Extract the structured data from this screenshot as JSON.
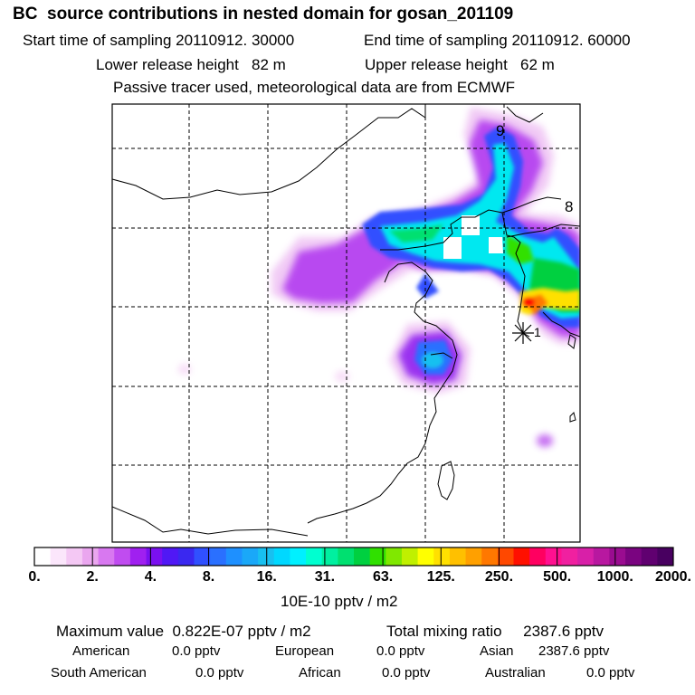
{
  "title": "BC  source contributions in nested domain for gosan_201109",
  "header": {
    "start_time": "Start time of sampling 20110912. 30000",
    "end_time": "End time of sampling 20110912. 60000",
    "lower_release": "Lower release height   82 m",
    "upper_release": "Upper release height   62 m",
    "tracer_note": "Passive tracer used, meteorological data are from ECMWF"
  },
  "map": {
    "markers": [
      "9",
      "8",
      "1"
    ],
    "receptor_icon": "star-marker-icon"
  },
  "colorbar": {
    "unit": "10E-10 pptv / m2",
    "labels": [
      "0.",
      "2.",
      "4.",
      "8.",
      "16.",
      "31.",
      "63.",
      "125.",
      "250.",
      "500.",
      "1000.",
      "2000."
    ],
    "colors": [
      "#ffffff",
      "#fbe6fb",
      "#f4c8f4",
      "#eaa6ef",
      "#d878f0",
      "#c04cf0",
      "#a020f0",
      "#7a10f0",
      "#5018f5",
      "#3a28f0",
      "#3050ff",
      "#2a70ff",
      "#1e90ff",
      "#1aa8f8",
      "#18c0f0",
      "#00d8ff",
      "#00f0ff",
      "#00ffd0",
      "#00f0a0",
      "#00e070",
      "#00d040",
      "#30e000",
      "#80e800",
      "#c0f000",
      "#ffff00",
      "#ffe000",
      "#ffc000",
      "#ffa000",
      "#ff7800",
      "#ff4800",
      "#ff1000",
      "#ff0060",
      "#ff1090",
      "#f020a0",
      "#d820a8",
      "#b818a0",
      "#9a0c90",
      "#7a0480",
      "#600070",
      "#480060"
    ]
  },
  "stats": {
    "max_value": "Maximum value  0.822E-07 pptv / m2",
    "total_mixing": "Total mixing ratio     2387.6 pptv",
    "regions_row1": [
      {
        "name": "American",
        "value": "0.0 pptv"
      },
      {
        "name": "European",
        "value": "0.0 pptv"
      },
      {
        "name": "Asian",
        "value": "2387.6 pptv"
      }
    ],
    "regions_row2": [
      {
        "name": "South American",
        "value": "0.0 pptv"
      },
      {
        "name": "African",
        "value": "0.0 pptv"
      },
      {
        "name": "Australian",
        "value": "0.0 pptv"
      }
    ]
  }
}
